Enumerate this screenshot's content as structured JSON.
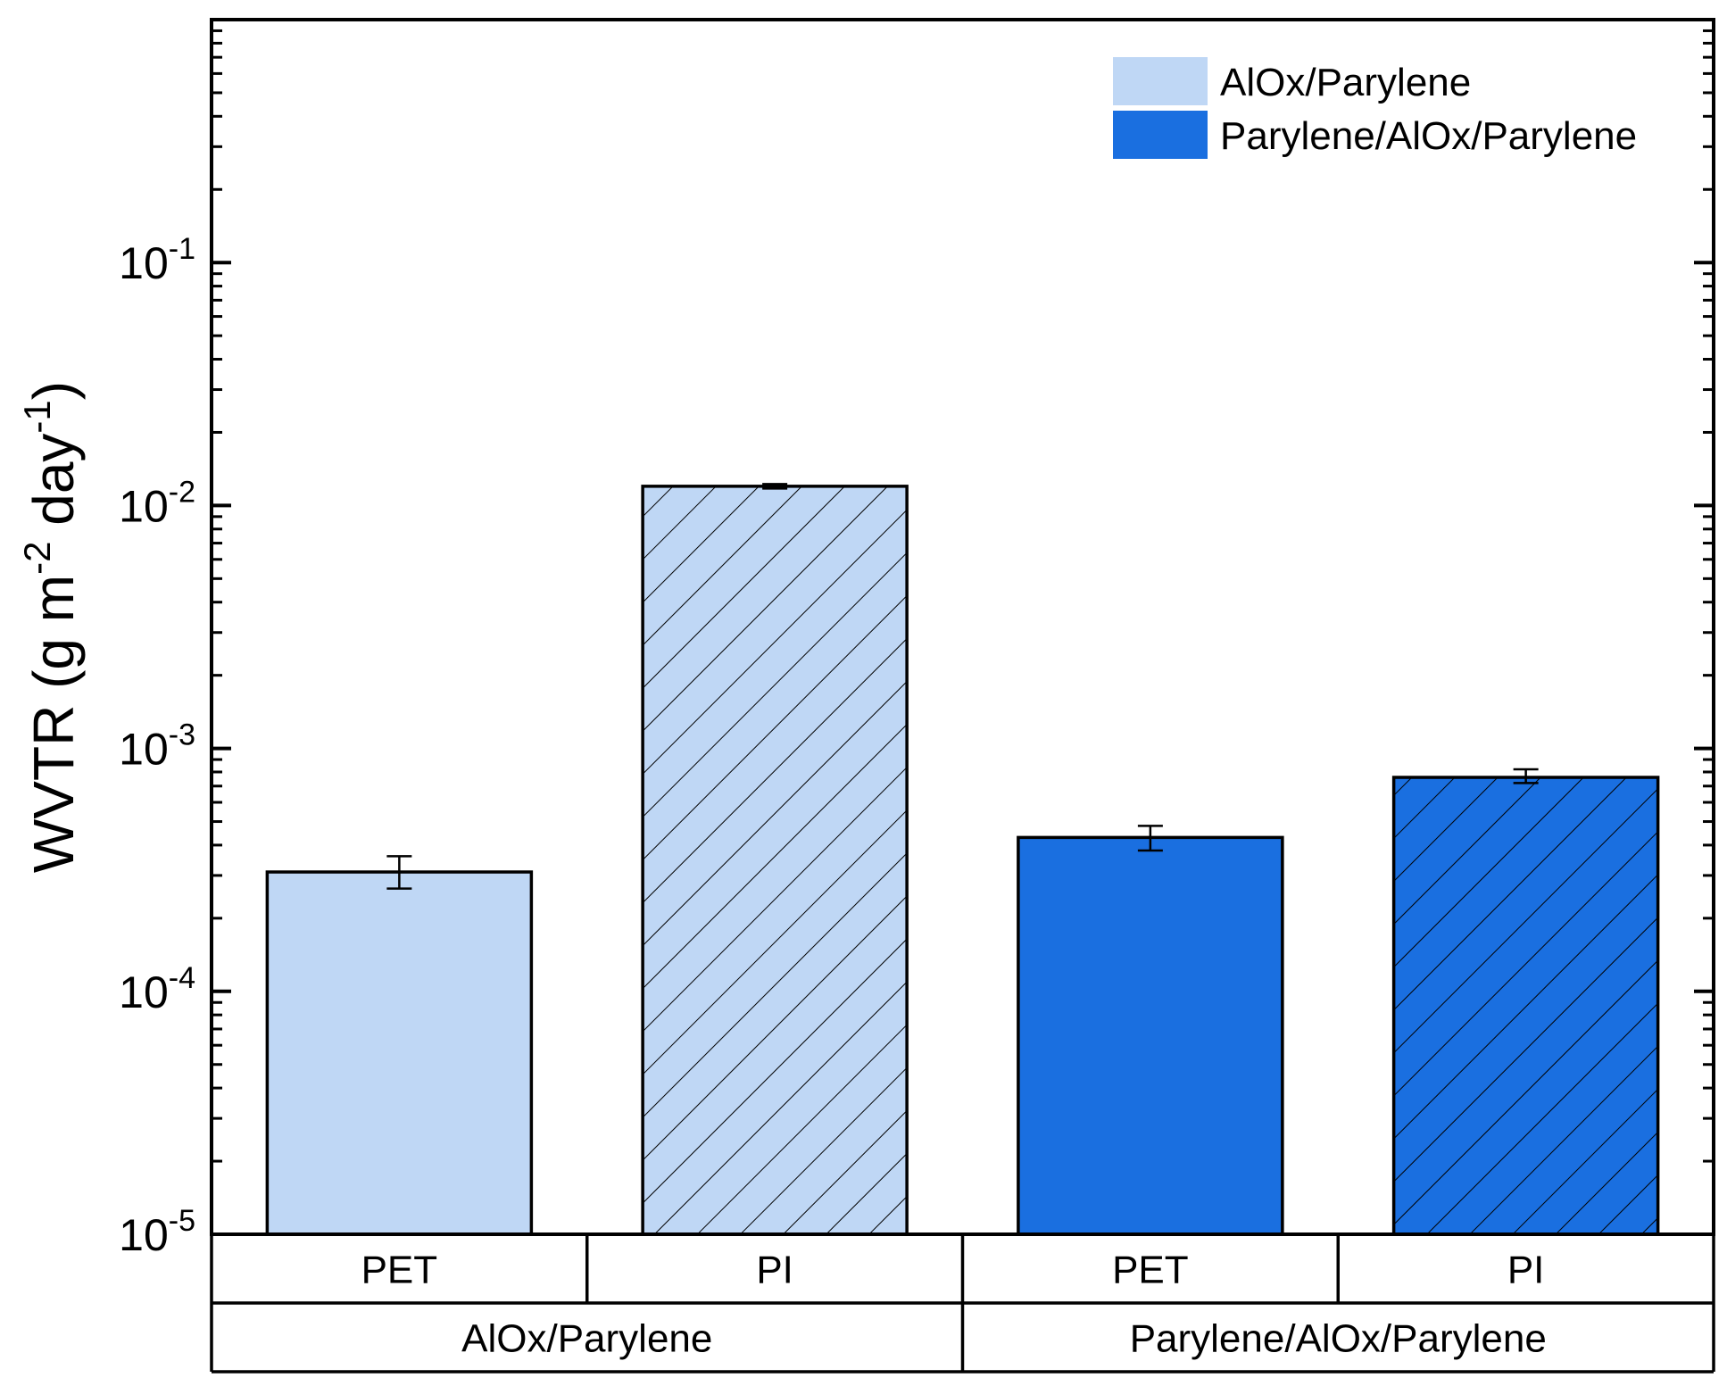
{
  "chart_data": {
    "type": "bar",
    "yscale": "log",
    "ylim": [
      1e-05,
      1
    ],
    "ylabel": {
      "main": "WVTR (g m",
      "sup1": "-2",
      "mid": " day",
      "sup2": "-1",
      "end": ")"
    },
    "yticks": [
      {
        "base": "10",
        "exp": "-5",
        "value": 1e-05
      },
      {
        "base": "10",
        "exp": "-4",
        "value": 0.0001
      },
      {
        "base": "10",
        "exp": "-3",
        "value": 0.001
      },
      {
        "base": "10",
        "exp": "-2",
        "value": 0.01
      },
      {
        "base": "10",
        "exp": "-1",
        "value": 0.1
      }
    ],
    "categories": [
      "PET",
      "PI",
      "PET",
      "PI"
    ],
    "groups": [
      "AlOx/Parylene",
      "Parylene/AlOx/Parylene"
    ],
    "bars": [
      {
        "group": "AlOx/Parylene",
        "substrate": "PET",
        "value": 0.00031,
        "err_low": 0.000265,
        "err_high": 0.00036,
        "color": "#bfd7f5",
        "hatched": false
      },
      {
        "group": "AlOx/Parylene",
        "substrate": "PI",
        "value": 0.012,
        "err_low": 0.01175,
        "err_high": 0.01225,
        "color": "#bfd7f5",
        "hatched": true
      },
      {
        "group": "Parylene/AlOx/Parylene",
        "substrate": "PET",
        "value": 0.00043,
        "err_low": 0.00038,
        "err_high": 0.00048,
        "color": "#1a6fe0",
        "hatched": false
      },
      {
        "group": "Parylene/AlOx/Parylene",
        "substrate": "PI",
        "value": 0.00076,
        "err_low": 0.00072,
        "err_high": 0.00082,
        "color": "#1a6fe0",
        "hatched": true
      }
    ],
    "legend": {
      "position": "top-right",
      "entries": [
        {
          "label": "AlOx/Parylene",
          "color": "#bfd7f5"
        },
        {
          "label": "Parylene/AlOx/Parylene",
          "color": "#1a6fe0"
        }
      ]
    }
  }
}
